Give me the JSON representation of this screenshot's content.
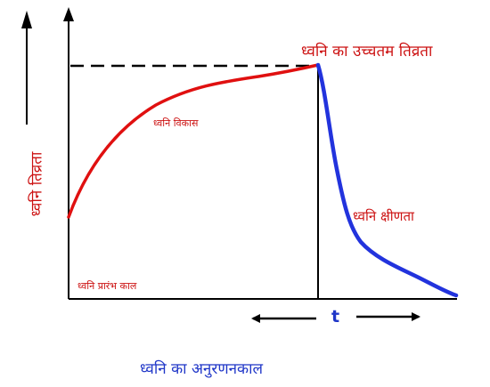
{
  "diagram": {
    "y_axis_label": "ध्वनि तिव्रता",
    "peak_label": "ध्वनि का उच्चतम तिव्रता",
    "growth_label": "ध्वनि विकास",
    "decay_label": "ध्वनि क्षीणता",
    "start_label": "ध्वनि प्रारंभ काल",
    "time_label": "t",
    "caption": "ध्वनि का अनुरणनकाल",
    "colors": {
      "axes": "#000000",
      "growth_curve": "#e01010",
      "decay_curve": "#2233dd",
      "labels_red": "#cc1111",
      "caption_blue": "#1f36c8"
    }
  }
}
